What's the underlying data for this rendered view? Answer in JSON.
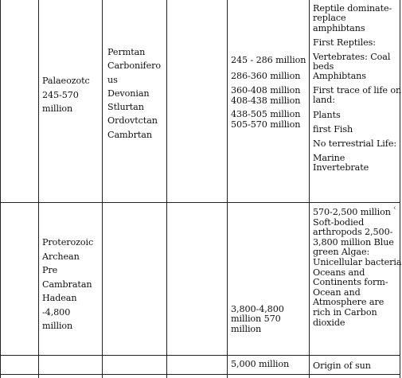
{
  "rows": [
    {
      "era": [
        "Palaeozotc",
        "245-570",
        "million"
      ],
      "periods": [
        "Permtan",
        "Carbonifero",
        "us",
        "Devonian",
        "Stlurtan",
        "Ordovtctan",
        "Cambrtan"
      ],
      "durations": [
        "245 - 286 million",
        "286-360 million",
        "360-408 million",
        "408-438 million",
        "438-505 million",
        "505-570 million"
      ],
      "events": [
        "Reptile dominate-",
        "replace",
        "amphibtans",
        "First Reptiles:",
        "Vertebrates: Coal",
        "beds",
        "Amphibtans",
        "First trace of life on",
        "land:",
        "Plants",
        "first Fish",
        "No terrestrial Life:",
        "Marine",
        "Invertebrate"
      ]
    },
    {
      "era": [
        "Proterozoic",
        "Archean",
        "Pre",
        "Cambratan",
        "Hadean",
        "-4,800",
        "million"
      ],
      "durations": [
        "3,800-4,800",
        "million 570",
        "million"
      ],
      "events": [
        "570-2,500 million",
        "Soft-bodied",
        "arthropods 2,500-",
        "3,800 million Blue",
        "green Algae:",
        "Unicellular bacteria",
        "Oceans and",
        "Continents form-",
        "Ocean and",
        "Atmosphere are",
        "rich in Carbon",
        "dioxide"
      ]
    },
    {
      "durations": [
        "5,000 million"
      ],
      "events": [
        "Origin of sun"
      ]
    }
  ]
}
